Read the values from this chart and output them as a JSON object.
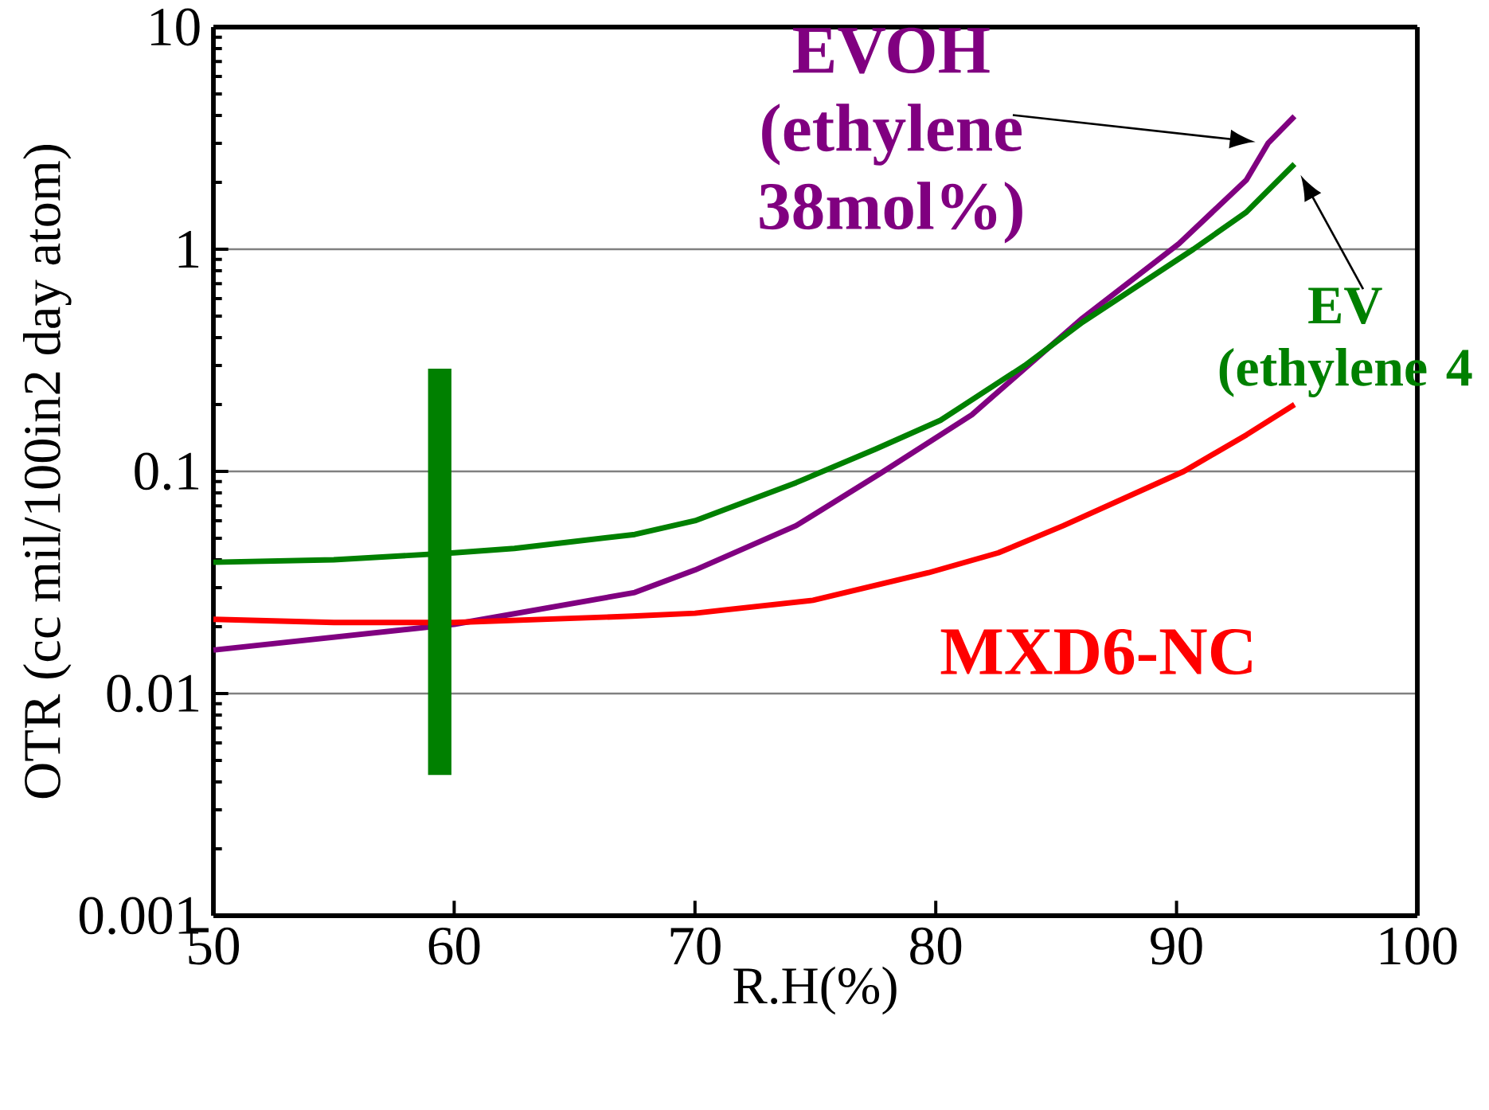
{
  "chart_data": {
    "type": "line",
    "xlabel": "R.H(%)",
    "ylabel": "OTR (cc mil/100in2 day atom)",
    "xlim": [
      50,
      100
    ],
    "xticks": [
      50,
      60,
      70,
      80,
      90,
      100
    ],
    "ylim": [
      0.001,
      10
    ],
    "yticks": [
      0.001,
      0.01,
      0.1,
      1,
      10
    ],
    "log": "y",
    "grid": "y",
    "marker": "none",
    "line_style": "solid",
    "series": [
      {
        "name": "EVOH (ethylene 38mol%)",
        "color": "#800080",
        "x": [
          50,
          60,
          67.5,
          70,
          74.2,
          77.7,
          81.5,
          86.1,
          90.1,
          92.9,
          93.8,
          94.9
        ],
        "values": [
          0.0157,
          0.0205,
          0.0285,
          0.036,
          0.057,
          0.098,
          0.18,
          0.49,
          1.06,
          2.05,
          3.0,
          3.97
        ]
      },
      {
        "name": "EV (ethylene 4",
        "color": "#008000",
        "x": [
          50,
          55,
          60,
          62.5,
          67.5,
          70,
          74.2,
          77.5,
          80.2,
          83.7,
          86.1,
          90.7,
          92.9,
          94.9
        ],
        "values": [
          0.039,
          0.04,
          0.043,
          0.045,
          0.052,
          0.06,
          0.089,
          0.126,
          0.17,
          0.3,
          0.47,
          1.0,
          1.47,
          2.42
        ]
      },
      {
        "name": "MXD6-NC",
        "color": "#ff0000",
        "x": [
          50,
          55,
          60,
          67.4,
          70,
          74.9,
          79.7,
          82.6,
          85.3,
          90.3,
          92.9,
          94.9
        ],
        "values": [
          0.0216,
          0.0209,
          0.0209,
          0.0223,
          0.023,
          0.0263,
          0.035,
          0.043,
          0.057,
          0.1,
          0.146,
          0.2
        ]
      },
      {
        "type": "bar",
        "color": "#008000",
        "x": [
          59.4
        ],
        "base": [
          0.0043
        ],
        "values": [
          0.286
        ]
      }
    ]
  }
}
